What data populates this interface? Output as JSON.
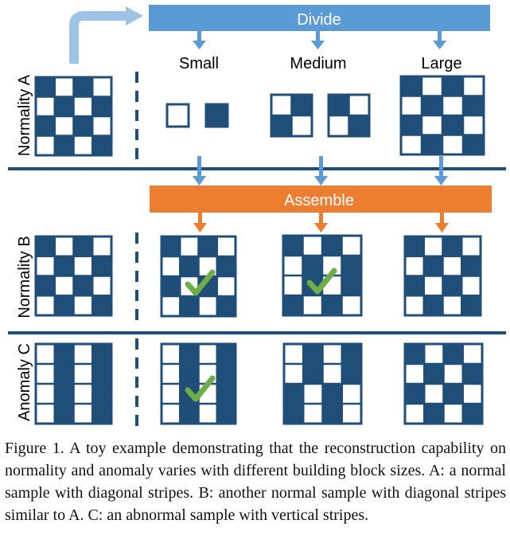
{
  "labels": {
    "divide": "Divide",
    "assemble": "Assemble",
    "scale_small": "Small",
    "scale_medium": "Medium",
    "scale_large": "Large",
    "row_a": "Normality A",
    "row_b": "Normality B",
    "row_c": "Anomaly C"
  },
  "caption": "Figure 1. A toy example demonstrating that the reconstruction capability on normality and anomaly varies with different building block sizes. A: a normal sample with diagonal stripes. B: another normal sample with diagonal stripes similar to A. C: an abnormal sample with vertical stripes.",
  "colors": {
    "navy": "#1f4e79",
    "divide_blue": "#5b9bd5",
    "assemble_orange": "#ed7d31",
    "check_green": "#70ad47",
    "pale_arrow": "#9dc3e6"
  },
  "icons": {
    "check": "checkmark-icon",
    "arrow_down": "arrow-down-icon"
  }
}
